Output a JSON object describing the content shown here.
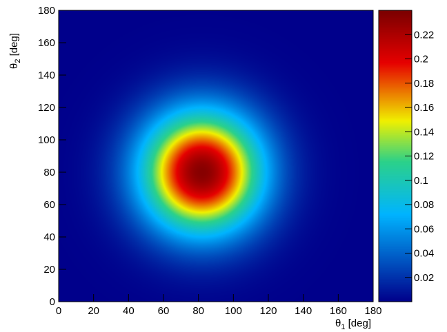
{
  "chart_data": {
    "type": "heatmap",
    "title": "",
    "xlabel": {
      "symbol": "θ",
      "sub": "1",
      "unit": " [deg]"
    },
    "ylabel": {
      "symbol": "θ",
      "sub": "2",
      "unit": " [deg]"
    },
    "xlim": [
      0,
      180
    ],
    "ylim": [
      0,
      180
    ],
    "x_ticks": [
      "0",
      "20",
      "40",
      "60",
      "80",
      "100",
      "120",
      "140",
      "160",
      "180"
    ],
    "y_ticks": [
      "0",
      "20",
      "40",
      "60",
      "80",
      "100",
      "120",
      "140",
      "160",
      "180"
    ],
    "z_range": [
      0,
      0.24
    ],
    "colorbar_ticks": [
      "0.02",
      "0.04",
      "0.06",
      "0.08",
      "0.1",
      "0.12",
      "0.14",
      "0.16",
      "0.18",
      "0.2",
      "0.22"
    ],
    "distribution": {
      "shape": "2D gaussian-like peak",
      "peak_center": [
        82,
        80
      ],
      "peak_value": 0.235,
      "sigma": [
        24,
        26
      ]
    },
    "colormap": "rainbow",
    "grid": false,
    "colors": {
      "low": "#00008b",
      "mid_low": "#00b4ff",
      "mid": "#2bd18a",
      "mid_high": "#f0f000",
      "high": "#e60000",
      "max": "#7a0000"
    }
  }
}
